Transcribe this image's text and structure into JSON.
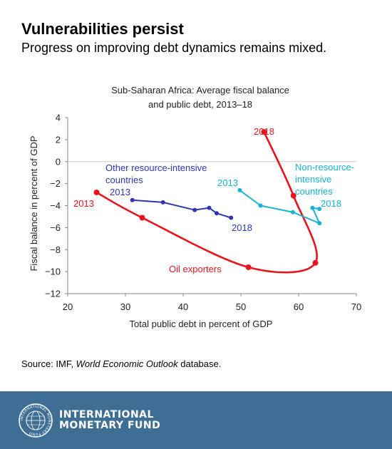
{
  "header": {
    "title": "Vulnerabilities persist",
    "subtitle": "Progress on improving debt dynamics remains mixed."
  },
  "source": {
    "prefix": "Source: IMF, ",
    "italic": "World Economic Outlook",
    "suffix": " database."
  },
  "footer": {
    "logo_line1": "INTERNATIONAL",
    "logo_line2": "MONETARY FUND",
    "seal_text": "INTERNATIONAL MONETARY FUND"
  },
  "chart_data": {
    "type": "line",
    "title": [
      "Sub-Saharan Africa: Average fiscal balance",
      "and public debt, 2013–18"
    ],
    "xlabel": "Total public debt in percent of GDP",
    "ylabel": "Fiscal balance in percent of GDP",
    "xlim": [
      20,
      70
    ],
    "ylim": [
      -12,
      4
    ],
    "xticks": [
      20,
      30,
      40,
      50,
      60,
      70
    ],
    "yticks": [
      4,
      2,
      0,
      -2,
      -4,
      -6,
      -8,
      -10,
      -12
    ],
    "grid": false,
    "series": [
      {
        "name": "Oil exporters",
        "color": "#e8141c",
        "smooth": true,
        "points": [
          [
            25,
            -2.8
          ],
          [
            32.9,
            -5.1
          ],
          [
            51.3,
            -9.6
          ],
          [
            62.9,
            -9.2
          ],
          [
            59.1,
            -3.1
          ],
          [
            54,
            2.7
          ]
        ],
        "start_label": "2013",
        "end_label": "2018"
      },
      {
        "name": "Other resource-intensive countries",
        "name_lines": [
          "Other resource-intensive",
          "countries"
        ],
        "color": "#2f35b5",
        "smooth": false,
        "points": [
          [
            31.2,
            -3.5
          ],
          [
            36.5,
            -3.7
          ],
          [
            42,
            -4.4
          ],
          [
            44.5,
            -4.2
          ],
          [
            45.8,
            -4.7
          ],
          [
            48.3,
            -5.1
          ]
        ],
        "start_label": "2013",
        "end_label": "2018"
      },
      {
        "name": "Non-resource-intensive countries",
        "name_lines": [
          "Non-resource-",
          "intensive",
          "countries"
        ],
        "color": "#16b4d4",
        "smooth": false,
        "points": [
          [
            49.8,
            -2.6
          ],
          [
            53.4,
            -4
          ],
          [
            59,
            -4.6
          ],
          [
            63.6,
            -5.6
          ],
          [
            62.4,
            -4.2
          ],
          [
            63.6,
            -4.3
          ]
        ],
        "start_label": "2013",
        "end_label": "2018"
      }
    ]
  }
}
